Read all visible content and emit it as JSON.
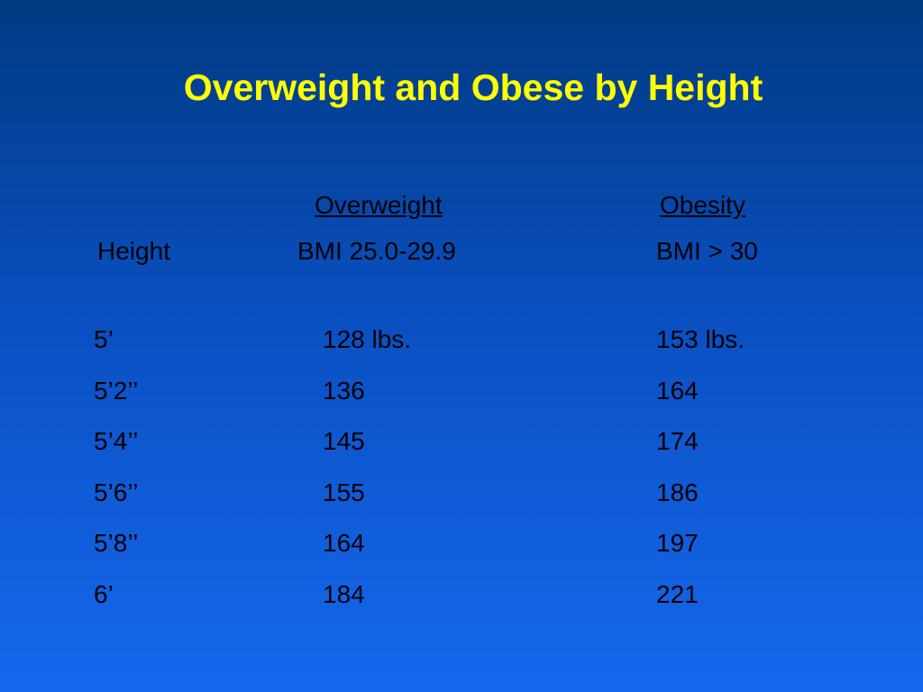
{
  "title": "Overweight and Obese by Height",
  "table": {
    "group_headers": [
      "Overweight",
      "Obesity"
    ],
    "headers": [
      "Height",
      "BMI 25.0-29.9",
      "BMI > 30"
    ],
    "rows": [
      [
        "5’",
        "128 lbs.",
        "153 lbs."
      ],
      [
        "5’2’’",
        "136",
        "164"
      ],
      [
        "5’4’’",
        "145",
        "174"
      ],
      [
        "5’6’’",
        "155",
        "186"
      ],
      [
        "5’8’’",
        "164",
        "197"
      ],
      [
        "6’",
        "184",
        "221"
      ]
    ]
  }
}
